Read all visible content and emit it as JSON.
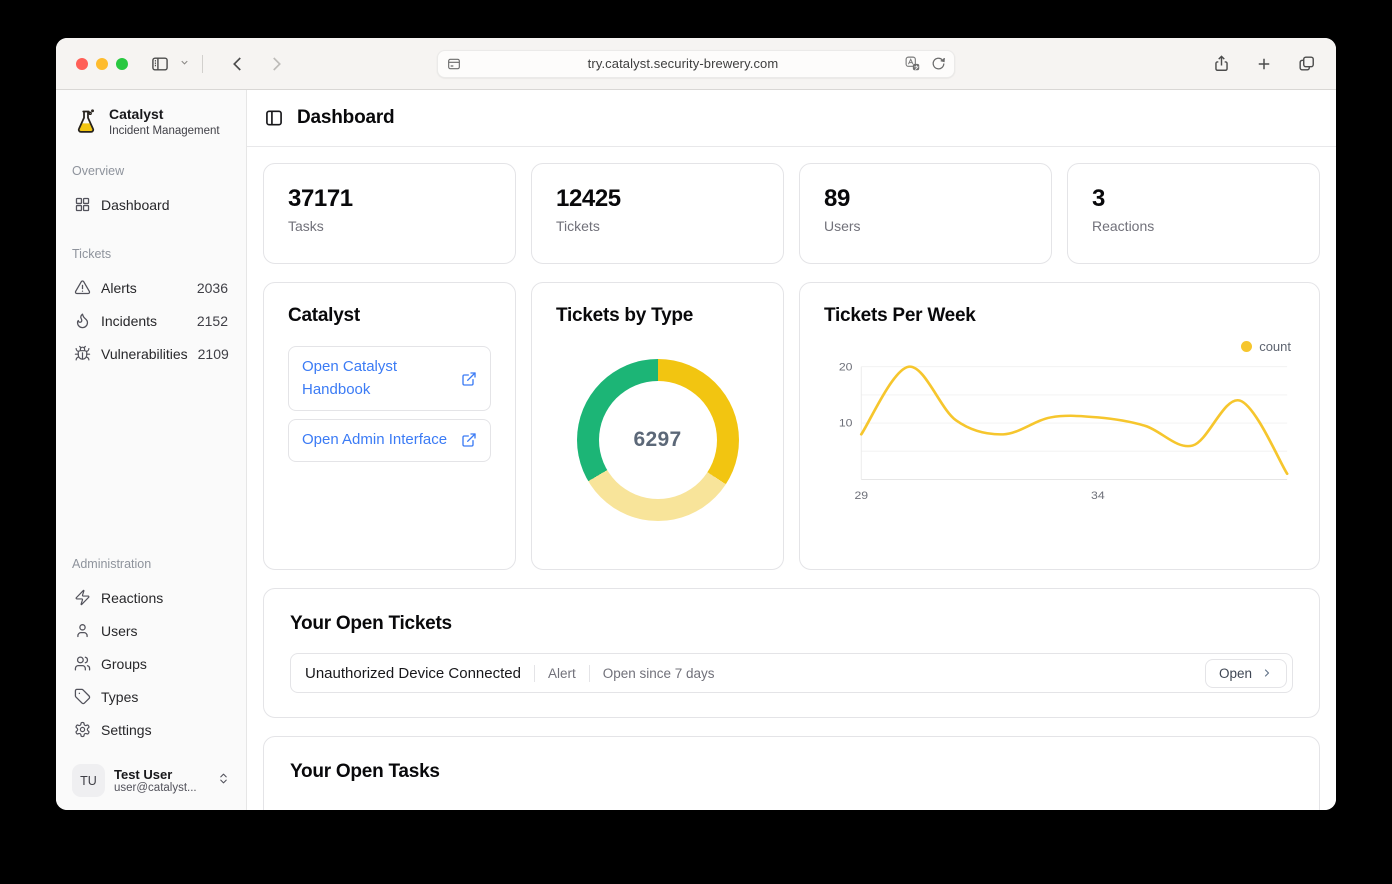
{
  "browser": {
    "url": "try.catalyst.security-brewery.com"
  },
  "sidebar": {
    "app_name": "Catalyst",
    "app_subtitle": "Incident Management",
    "sections": {
      "overview": {
        "label": "Overview",
        "items": [
          {
            "label": "Dashboard"
          }
        ]
      },
      "tickets": {
        "label": "Tickets",
        "items": [
          {
            "label": "Alerts",
            "count": "2036"
          },
          {
            "label": "Incidents",
            "count": "2152"
          },
          {
            "label": "Vulnerabilities",
            "count": "2109"
          }
        ]
      },
      "administration": {
        "label": "Administration",
        "items": [
          {
            "label": "Reactions"
          },
          {
            "label": "Users"
          },
          {
            "label": "Groups"
          },
          {
            "label": "Types"
          },
          {
            "label": "Settings"
          }
        ]
      }
    },
    "user": {
      "initials": "TU",
      "name": "Test User",
      "email": "user@catalyst..."
    }
  },
  "header": {
    "title": "Dashboard"
  },
  "stats": [
    {
      "value": "37171",
      "label": "Tasks"
    },
    {
      "value": "12425",
      "label": "Tickets"
    },
    {
      "value": "89",
      "label": "Users"
    },
    {
      "value": "3",
      "label": "Reactions"
    }
  ],
  "catalyst_card": {
    "title": "Catalyst",
    "handbook_label": "Open Catalyst Handbook",
    "admin_label": "Open Admin Interface"
  },
  "open_tickets": {
    "title": "Your Open Tickets",
    "ticket": {
      "name": "Unauthorized Device Connected",
      "type": "Alert",
      "age": "Open since 7 days",
      "action": "Open"
    }
  },
  "open_tasks": {
    "title": "Your Open Tasks"
  },
  "chart_data": [
    {
      "type": "pie",
      "title": "Tickets by Type",
      "center_label": "6297",
      "total": 6297,
      "segments": [
        {
          "value": 2152,
          "color": "#f2c511"
        },
        {
          "value": 2036,
          "color": "#f8e49a"
        },
        {
          "value": 2109,
          "color": "#1cb576"
        }
      ],
      "donut": true,
      "legend": "none"
    },
    {
      "type": "line",
      "title": "Tickets Per Week",
      "x": [
        29,
        30,
        31,
        32,
        33,
        34,
        35,
        36,
        37,
        38
      ],
      "series": [
        {
          "name": "count",
          "color": "#f6c62d",
          "values": [
            8,
            20,
            10.5,
            8,
            11,
            11,
            9.5,
            6,
            14,
            1
          ]
        }
      ],
      "x_tick_indices": [
        0,
        5
      ],
      "y_ticks": [
        10,
        20
      ],
      "ylim": [
        0,
        20
      ],
      "grid": true,
      "smooth": true,
      "legend_position": "top-right"
    }
  ],
  "colors": {
    "accent_blue": "#3b7bf5",
    "chart_yellow": "#f6c62d",
    "donut_gold": "#f2c511",
    "donut_pale": "#f8e49a",
    "donut_green": "#1cb576"
  }
}
